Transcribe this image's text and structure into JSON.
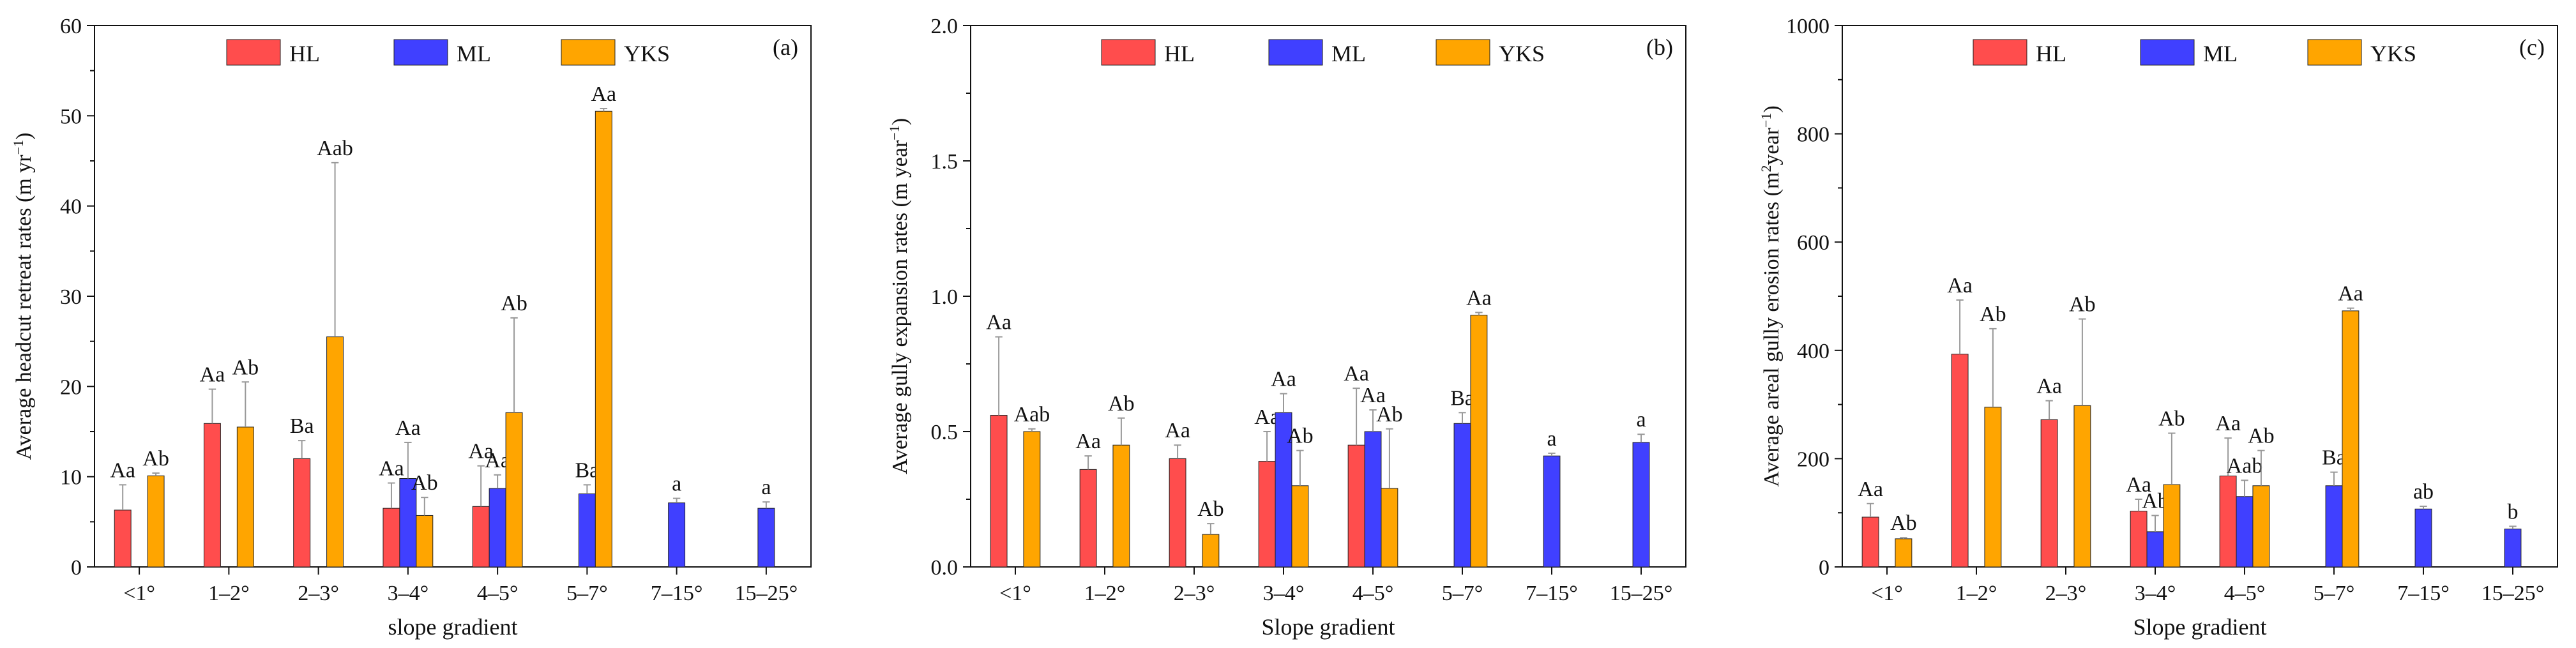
{
  "colors": {
    "HL": "#ff4d4d",
    "ML": "#4040ff",
    "YKS": "#ffa500",
    "axis": "#111111",
    "error": "#999999"
  },
  "chart_data": [
    {
      "type": "bar",
      "panel_label": "(a)",
      "title": "",
      "xlabel": "slope gradient",
      "ylabel": "Average headcut retreat rates (m yr−1)",
      "ylim": [
        0,
        60
      ],
      "yticks": [
        "0",
        "10",
        "20",
        "30",
        "40",
        "50",
        "60"
      ],
      "yminor": 5,
      "legend_position": "top",
      "categories": [
        "<1°",
        "1–2°",
        "2–3°",
        "3–4°",
        "4–5°",
        "5–7°",
        "7–15°",
        "15–25°"
      ],
      "series": [
        {
          "name": "HL",
          "values": [
            6.3,
            15.9,
            12.0,
            6.5,
            6.7,
            null,
            null,
            null
          ],
          "errors": [
            2.8,
            3.8,
            2.0,
            2.8,
            4.5,
            null,
            null,
            null
          ],
          "labels": [
            "Aa",
            "Aa",
            "Ba",
            "Aa",
            "Aa",
            null,
            null,
            null
          ]
        },
        {
          "name": "ML",
          "values": [
            null,
            null,
            null,
            9.8,
            8.7,
            8.1,
            7.1,
            6.5
          ],
          "errors": [
            null,
            null,
            null,
            4.0,
            1.5,
            1.0,
            0.5,
            0.7
          ],
          "labels": [
            null,
            null,
            null,
            "Aa",
            "Aa",
            "Ba",
            "a",
            "a"
          ]
        },
        {
          "name": "YKS",
          "values": [
            10.1,
            15.5,
            25.5,
            5.7,
            17.1,
            50.5,
            null,
            null
          ],
          "errors": [
            0.3,
            5.0,
            19.3,
            2.0,
            10.5,
            0.3,
            null,
            null
          ],
          "labels": [
            "Ab",
            "Ab",
            "Aab",
            "Ab",
            "Ab",
            "Aa",
            null,
            null
          ]
        }
      ]
    },
    {
      "type": "bar",
      "panel_label": "(b)",
      "title": "",
      "xlabel": "Slope gradient",
      "ylabel": "Average gully expansion rates (m year−1)",
      "ylim": [
        0,
        2.0
      ],
      "yticks": [
        "0.0",
        "0.5",
        "1.0",
        "1.5",
        "2.0"
      ],
      "yminor": 0.25,
      "legend_position": "top",
      "categories": [
        "<1°",
        "1–2°",
        "2–3°",
        "3–4°",
        "4–5°",
        "5–7°",
        "7–15°",
        "15–25°"
      ],
      "series": [
        {
          "name": "HL",
          "values": [
            0.56,
            0.36,
            0.4,
            0.39,
            0.45,
            null,
            null,
            null
          ],
          "errors": [
            0.29,
            0.05,
            0.05,
            0.11,
            0.21,
            null,
            null,
            null
          ],
          "labels": [
            "Aa",
            "Aa",
            "Aa",
            "Aa",
            "Aa",
            null,
            null,
            null
          ]
        },
        {
          "name": "ML",
          "values": [
            null,
            null,
            null,
            0.57,
            0.5,
            0.53,
            0.41,
            0.46
          ],
          "errors": [
            null,
            null,
            null,
            0.07,
            0.08,
            0.04,
            0.01,
            0.03
          ],
          "labels": [
            null,
            null,
            null,
            "Aa",
            "Aa",
            "Ba",
            "a",
            "a"
          ]
        },
        {
          "name": "YKS",
          "values": [
            0.5,
            0.45,
            0.12,
            0.3,
            0.29,
            0.93,
            null,
            null
          ],
          "errors": [
            0.01,
            0.1,
            0.04,
            0.13,
            0.22,
            0.01,
            null,
            null
          ],
          "labels": [
            "Aab",
            "Ab",
            "Ab",
            "Ab",
            "Ab",
            "Aa",
            null,
            null
          ]
        }
      ]
    },
    {
      "type": "bar",
      "panel_label": "(c)",
      "title": "",
      "xlabel": "Slope gradient",
      "ylabel": "Average areal gully erosion rates  (m2year−1)",
      "ylim": [
        0,
        1000
      ],
      "yticks": [
        "0",
        "200",
        "400",
        "600",
        "800",
        "1000"
      ],
      "yminor": 100,
      "legend_position": "top",
      "categories": [
        "<1°",
        "1–2°",
        "2–3°",
        "3–4°",
        "4–5°",
        "5–7°",
        "7–15°",
        "15–25°"
      ],
      "series": [
        {
          "name": "HL",
          "values": [
            92,
            393,
            272,
            103,
            168,
            null,
            null,
            null
          ],
          "errors": [
            25,
            100,
            35,
            22,
            70,
            null,
            null,
            null
          ],
          "labels": [
            "Aa",
            "Aa",
            "Aa",
            "Aa",
            "Aa",
            null,
            null,
            null
          ]
        },
        {
          "name": "ML",
          "values": [
            null,
            null,
            null,
            65,
            130,
            150,
            107,
            70
          ],
          "errors": [
            null,
            null,
            null,
            30,
            30,
            25,
            5,
            5
          ],
          "labels": [
            null,
            null,
            null,
            "Ab",
            "Aab",
            "Ba",
            "ab",
            "b"
          ]
        },
        {
          "name": "YKS",
          "values": [
            52,
            295,
            298,
            152,
            150,
            473,
            null,
            null
          ],
          "errors": [
            2,
            145,
            160,
            95,
            65,
            5,
            null,
            null
          ],
          "labels": [
            "Ab",
            "Ab",
            "Ab",
            "Ab",
            "Ab",
            "Aa",
            null,
            null
          ]
        }
      ]
    }
  ]
}
